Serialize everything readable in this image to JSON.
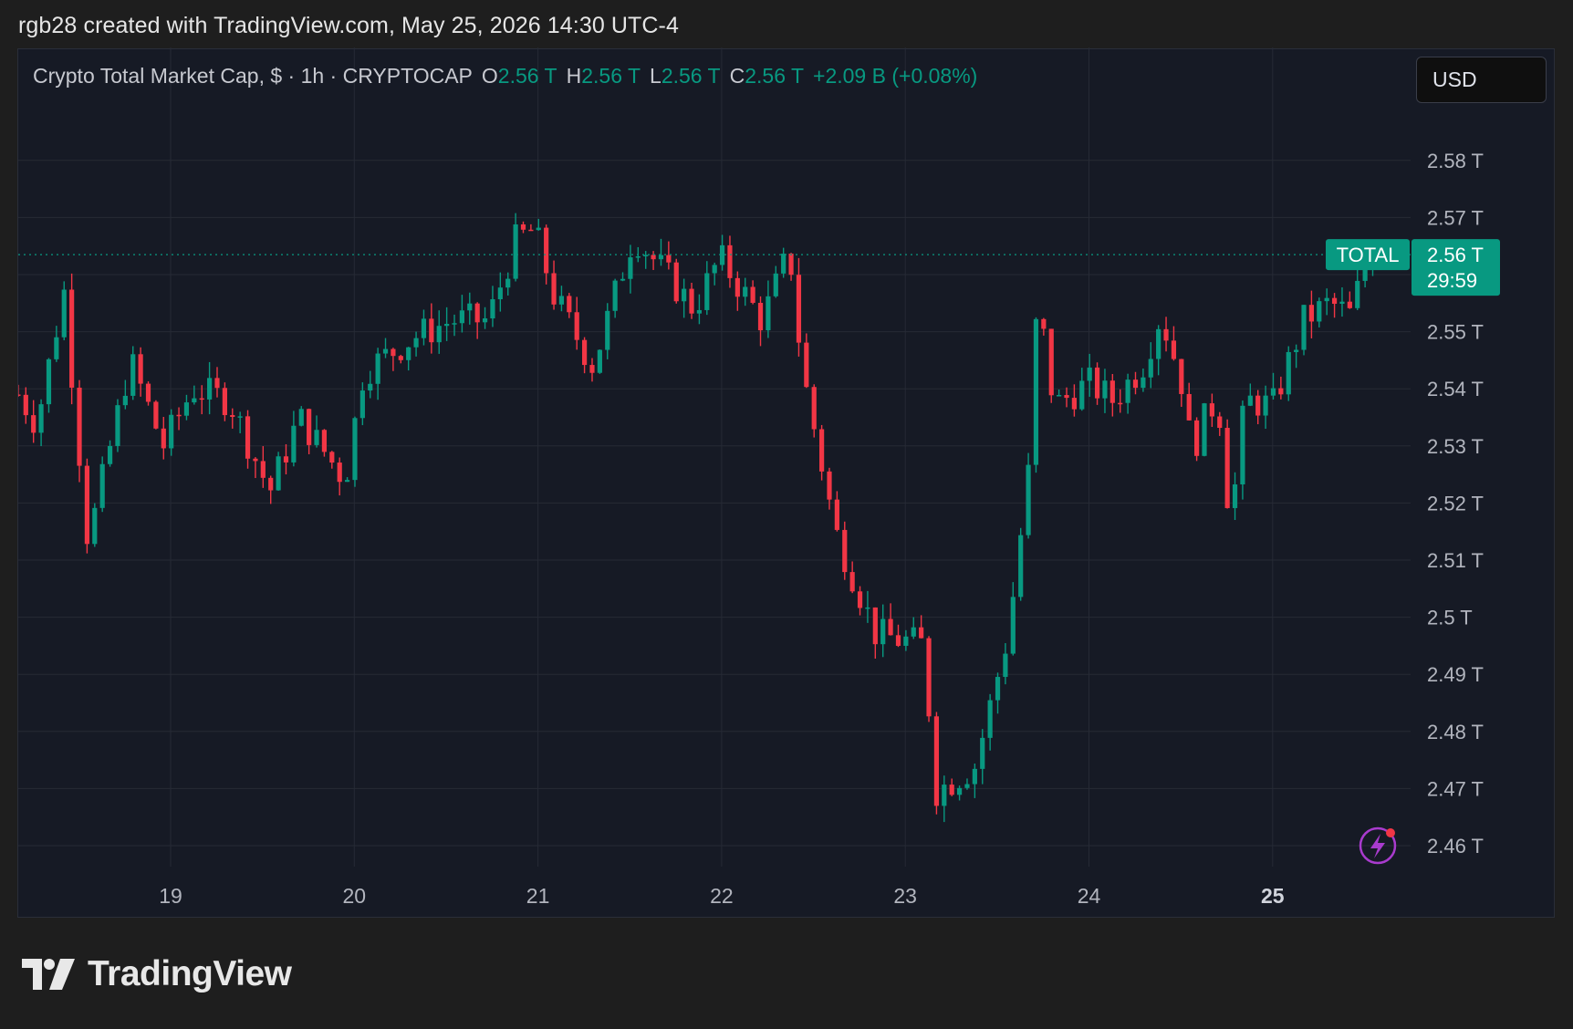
{
  "credit": "rgb28 created with TradingView.com, May 25, 2026 14:30 UTC-4",
  "legend": {
    "name": "Crypto Total Market Cap, $ · 1h · CRYPTOCAP",
    "o_label": "O",
    "o_value": "2.56 T",
    "h_label": "H",
    "h_value": "2.56 T",
    "l_label": "L",
    "l_value": "2.56 T",
    "c_label": "C",
    "c_value": "2.56 T",
    "change": "+2.09 B (+0.08%)"
  },
  "currency": "USD",
  "footer_brand": "TradingView",
  "colors": {
    "up": "#089981",
    "down": "#f23645",
    "background": "#161a25",
    "grid": "#262a35",
    "axis_text": "#b2b5be",
    "live_badge": "#089981",
    "lightning": "#a93bce"
  },
  "icons": [
    "tradingview-logo-icon",
    "lightning-alert-icon"
  ],
  "chart_data": {
    "type": "candlestick",
    "title": "Crypto Total Market Cap",
    "interval": "1h",
    "symbol": "CRYPTOCAP:TOTAL",
    "price_unit": "T",
    "x_tick_labels": [
      "19",
      "20",
      "21",
      "22",
      "23",
      "24",
      "25"
    ],
    "bold_x_tick": "25",
    "y_tick_labels": [
      "2.46 T",
      "2.47 T",
      "2.48 T",
      "2.49 T",
      "2.5 T",
      "2.51 T",
      "2.52 T",
      "2.53 T",
      "2.54 T",
      "2.55 T",
      "2.56 T",
      "2.57 T",
      "2.58 T"
    ],
    "y_ticks": [
      2.46,
      2.47,
      2.48,
      2.49,
      2.5,
      2.51,
      2.52,
      2.53,
      2.54,
      2.55,
      2.56,
      2.57,
      2.58
    ],
    "ylim": [
      2.455,
      2.594
    ],
    "x_day_ticks": [
      19,
      20,
      21,
      22,
      23,
      24,
      25
    ],
    "xlim": [
      18.17,
      25.76
    ],
    "grid": true,
    "last_price": {
      "label": "TOTAL",
      "value": 2.5635,
      "value_label": "2.56 T",
      "countdown": "29:59"
    },
    "anchors": [
      [
        18.17,
        2.539
      ],
      [
        18.27,
        2.534
      ],
      [
        18.42,
        2.557
      ],
      [
        18.55,
        2.513
      ],
      [
        18.78,
        2.545
      ],
      [
        18.96,
        2.53
      ],
      [
        19.12,
        2.54
      ],
      [
        19.32,
        2.538
      ],
      [
        19.54,
        2.522
      ],
      [
        19.7,
        2.535
      ],
      [
        19.95,
        2.524
      ],
      [
        20.05,
        2.543
      ],
      [
        20.32,
        2.549
      ],
      [
        20.53,
        2.552
      ],
      [
        20.73,
        2.552
      ],
      [
        20.88,
        2.566
      ],
      [
        20.98,
        2.568
      ],
      [
        21.09,
        2.556
      ],
      [
        21.3,
        2.544
      ],
      [
        21.52,
        2.567
      ],
      [
        21.85,
        2.554
      ],
      [
        21.99,
        2.563
      ],
      [
        22.22,
        2.552
      ],
      [
        22.37,
        2.564
      ],
      [
        22.44,
        2.543
      ],
      [
        22.62,
        2.515
      ],
      [
        22.84,
        2.497
      ],
      [
        23.12,
        2.495
      ],
      [
        23.14,
        2.469
      ],
      [
        23.38,
        2.474
      ],
      [
        23.56,
        2.497
      ],
      [
        23.67,
        2.525
      ],
      [
        23.72,
        2.556
      ],
      [
        23.81,
        2.537
      ],
      [
        24.0,
        2.541
      ],
      [
        24.13,
        2.538
      ],
      [
        24.29,
        2.544
      ],
      [
        24.39,
        2.553
      ],
      [
        24.5,
        2.542
      ],
      [
        24.56,
        2.529
      ],
      [
        24.66,
        2.537
      ],
      [
        24.71,
        2.536
      ],
      [
        24.77,
        2.516
      ],
      [
        24.85,
        2.538
      ],
      [
        25.0,
        2.537
      ],
      [
        25.17,
        2.552
      ],
      [
        25.31,
        2.555
      ],
      [
        25.42,
        2.553
      ],
      [
        25.5,
        2.561
      ],
      [
        25.57,
        2.5635
      ]
    ]
  }
}
